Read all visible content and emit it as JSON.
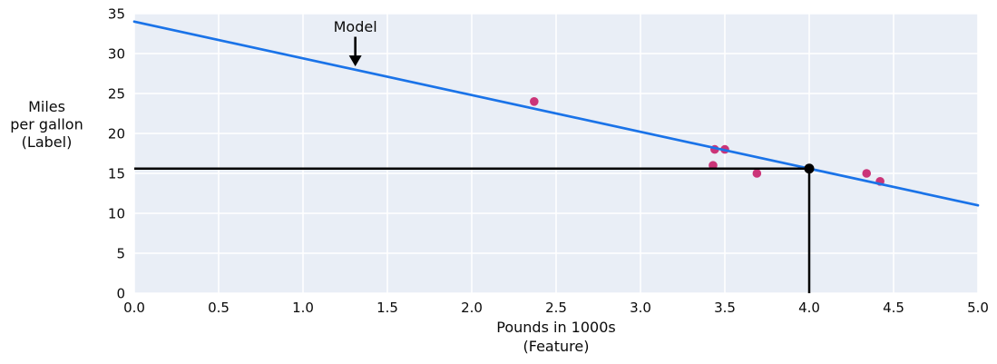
{
  "chart_data": {
    "type": "scatter",
    "title": "",
    "xlabel_lines": [
      "Pounds in 1000s",
      "(Feature)"
    ],
    "ylabel_lines": [
      "Miles",
      "per gallon",
      "(Label)"
    ],
    "xlim": [
      0,
      5
    ],
    "ylim": [
      0,
      35
    ],
    "grid": true,
    "legend": "none",
    "x_ticks": [
      0,
      0.5,
      1,
      1.5,
      2,
      2.5,
      3,
      3.5,
      4,
      4.5,
      5
    ],
    "x_tick_labels": [
      "0.0",
      "0.5",
      "1.0",
      "1.5",
      "2.0",
      "2.5",
      "3.0",
      "3.5",
      "4.0",
      "4.5",
      "5.0"
    ],
    "y_ticks": [
      0,
      5,
      10,
      15,
      20,
      25,
      30,
      35
    ],
    "y_tick_labels": [
      "0",
      "5",
      "10",
      "15",
      "20",
      "25",
      "30",
      "35"
    ],
    "series": [
      {
        "name": "observed-points",
        "kind": "scatter",
        "color": "#cb3478",
        "x": [
          3.5,
          3.69,
          3.44,
          3.43,
          4.34,
          4.42,
          2.37
        ],
        "y": [
          18,
          15,
          18,
          16,
          15,
          14,
          24
        ]
      },
      {
        "name": "model-line",
        "kind": "line",
        "color": "#1a73e8",
        "x": [
          0,
          5
        ],
        "y": [
          34,
          11
        ]
      }
    ],
    "prediction_point": {
      "x": 4.0,
      "y": 15.6,
      "color": "#000000",
      "note": "black guide lines drop from the model line at x=4.0 to both axes"
    },
    "annotation": {
      "text": "Model",
      "x": 1.31,
      "text_baseline_y": 32.7,
      "arrow_tail_y": 32.1,
      "arrow_tip_y": 28.4,
      "color": "#000000"
    },
    "plot_bg": "#e9eef6",
    "grid_color": "#ffffff",
    "text_color": "#0a0a0a"
  }
}
